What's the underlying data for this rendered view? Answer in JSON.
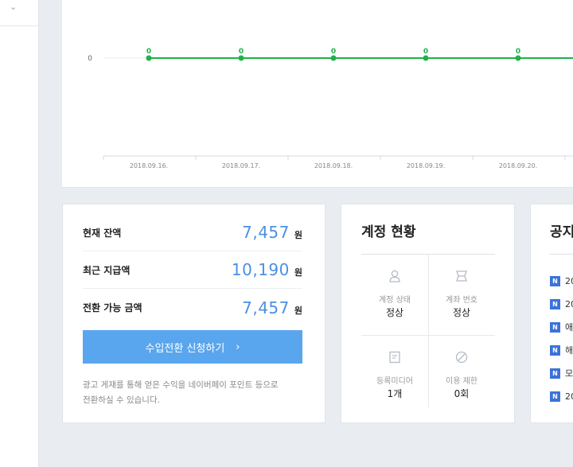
{
  "chart_data": {
    "type": "line",
    "categories": [
      "2018.09.16.",
      "2018.09.17.",
      "2018.09.18.",
      "2018.09.19.",
      "2018.09.20."
    ],
    "series": [
      {
        "values": [
          0,
          0,
          0,
          0,
          0
        ],
        "color": "#1fb24a"
      }
    ],
    "y_ticks": [
      "0"
    ],
    "data_labels": [
      "0",
      "0",
      "0",
      "0",
      "0"
    ],
    "grid": false
  },
  "balance": {
    "rows": [
      {
        "label": "현재 잔액",
        "value": "7,457",
        "unit": "원"
      },
      {
        "label": "최근 지급액",
        "value": "10,190",
        "unit": "원"
      },
      {
        "label": "전환 가능 금액",
        "value": "7,457",
        "unit": "원"
      }
    ],
    "button_label": "수입전환 신청하기",
    "button_arrow": "›",
    "help_line1": "광고 게재를 통해 얻은 수익을 네이버페이 포인트 등으로",
    "help_line2": "전환하실 수 있습니다."
  },
  "status": {
    "title": "계정 현황",
    "items": [
      {
        "icon": "person-icon",
        "label": "계정 상태",
        "value": "정상"
      },
      {
        "icon": "card-icon",
        "label": "계좌 번호",
        "value": "정상"
      },
      {
        "icon": "document-icon",
        "label": "등록미디어",
        "value": "1개"
      },
      {
        "icon": "prohibited-icon",
        "label": "이용 제한",
        "value": "0회"
      }
    ]
  },
  "notice": {
    "title": "공지",
    "badge": "N",
    "items": [
      "20",
      "20",
      "애",
      "해",
      "모",
      "20"
    ]
  },
  "colors": {
    "accent_blue": "#4a90e2",
    "button_blue": "#5aa6ee",
    "line_green": "#1fb24a",
    "badge_blue": "#3b73d9"
  }
}
